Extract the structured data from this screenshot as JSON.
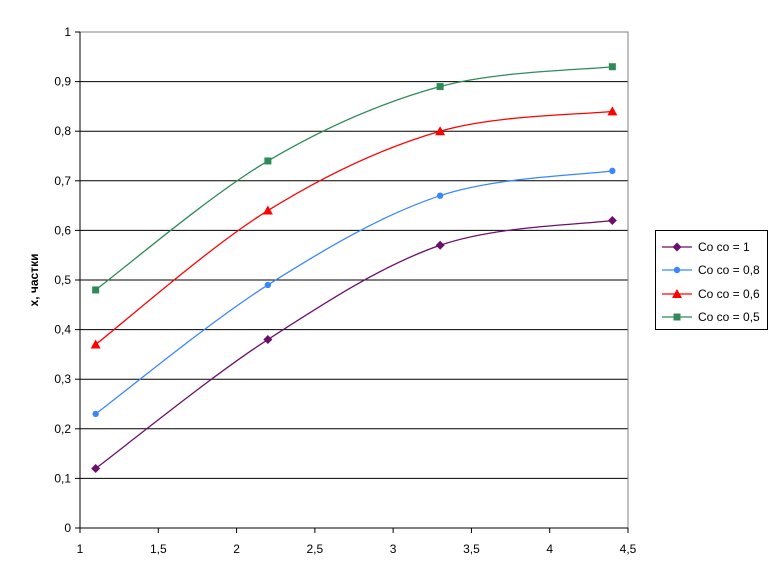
{
  "chart_data": {
    "type": "line",
    "xlabel": "",
    "ylabel": "x, частки",
    "xlim": [
      1,
      4.5
    ],
    "ylim": [
      0,
      1
    ],
    "x_ticks": [
      "1",
      "1,5",
      "2",
      "2,5",
      "3",
      "3,5",
      "4",
      "4,5"
    ],
    "y_ticks": [
      "0",
      "0,1",
      "0,2",
      "0,3",
      "0,4",
      "0,5",
      "0,6",
      "0,7",
      "0,8",
      "0,9",
      "1"
    ],
    "grid": "horizontal",
    "legend_position": "right",
    "series": [
      {
        "name": "Co co = 1",
        "color": "#6b0f6b",
        "marker": "diamond",
        "x": [
          1.1,
          2.2,
          3.3,
          4.4
        ],
        "y": [
          0.12,
          0.38,
          0.57,
          0.62
        ]
      },
      {
        "name": "Co co = 0,8",
        "color": "#3a86ff",
        "marker": "circle",
        "x": [
          1.1,
          2.2,
          3.3,
          4.4
        ],
        "y": [
          0.23,
          0.49,
          0.67,
          0.72
        ]
      },
      {
        "name": "Co co = 0,6",
        "color": "#ff0000",
        "marker": "triangle",
        "x": [
          1.1,
          2.2,
          3.3,
          4.4
        ],
        "y": [
          0.37,
          0.64,
          0.8,
          0.84
        ]
      },
      {
        "name": "Co co = 0,5",
        "color": "#2e8b57",
        "marker": "square",
        "x": [
          1.1,
          2.2,
          3.3,
          4.4
        ],
        "y": [
          0.48,
          0.74,
          0.89,
          0.93
        ]
      }
    ]
  }
}
